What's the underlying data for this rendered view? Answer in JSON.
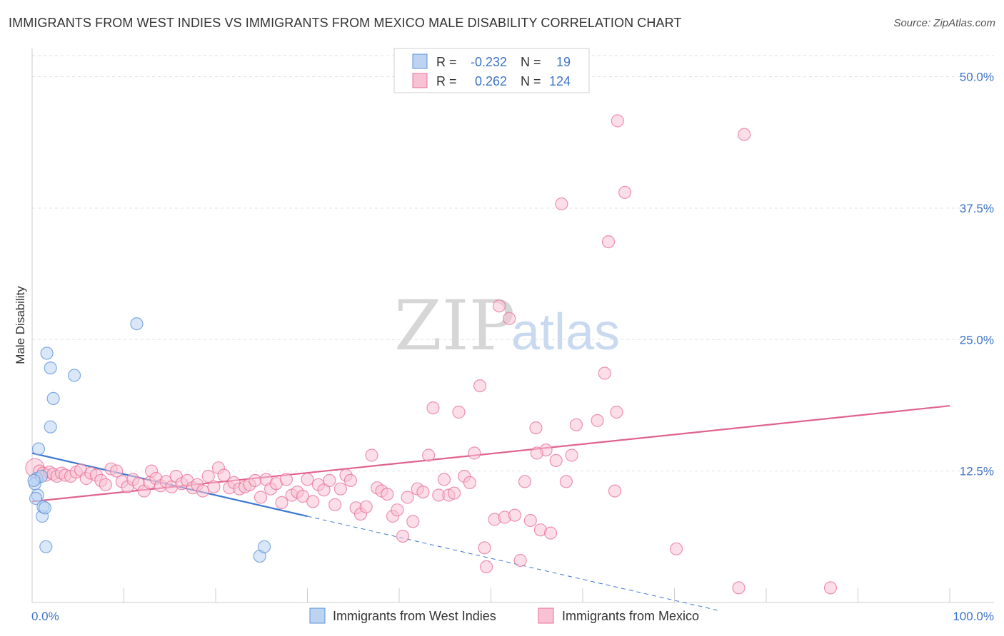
{
  "header": {
    "title": "IMMIGRANTS FROM WEST INDIES VS IMMIGRANTS FROM MEXICO MALE DISABILITY CORRELATION CHART",
    "source": "Source: ZipAtlas.com"
  },
  "watermark": {
    "zip": "ZIP",
    "atlas": "atlas"
  },
  "colors": {
    "west_indies": "#5b93d8",
    "west_indies_fill": "#bcd3f2",
    "mexico": "#e8709a",
    "mexico_fill": "#f7c2d4",
    "tick_label": "#3d74c6",
    "grid": "#dddddd"
  },
  "legend": {
    "rows": [
      {
        "r_label": "R =",
        "r_value": "-0.232",
        "n_label": "N =",
        "n_value": "19"
      },
      {
        "r_label": "R =",
        "r_value": "0.262",
        "n_label": "N =",
        "n_value": "124"
      }
    ]
  },
  "chart_data": {
    "type": "scatter",
    "title": "IMMIGRANTS FROM WEST INDIES VS IMMIGRANTS FROM MEXICO MALE DISABILITY CORRELATION CHART",
    "xlabel": "",
    "ylabel": "Male Disability",
    "xlim": [
      0,
      100
    ],
    "ylim": [
      0,
      52
    ],
    "x_tick_labels": [
      "0.0%",
      "100.0%"
    ],
    "y_ticks": [
      12.5,
      25.0,
      37.5,
      50.0
    ],
    "y_tick_labels": [
      "12.5%",
      "25.0%",
      "37.5%",
      "50.0%"
    ],
    "grid": true,
    "legend_position": "top-center",
    "series": [
      {
        "name": "Immigrants from West Indies",
        "r": -0.232,
        "n": 19,
        "points": [
          [
            0.5,
            11.8
          ],
          [
            0.3,
            11.3
          ],
          [
            0.6,
            10.2
          ],
          [
            0.4,
            9.9
          ],
          [
            0.7,
            14.6
          ],
          [
            1.0,
            12.0
          ],
          [
            1.1,
            8.2
          ],
          [
            1.2,
            9.1
          ],
          [
            1.4,
            9.0
          ],
          [
            1.5,
            5.3
          ],
          [
            1.6,
            23.7
          ],
          [
            2.0,
            22.3
          ],
          [
            2.0,
            16.7
          ],
          [
            2.3,
            19.4
          ],
          [
            4.6,
            21.6
          ],
          [
            11.4,
            26.5
          ],
          [
            24.8,
            4.4
          ],
          [
            25.3,
            5.3
          ],
          [
            0.2,
            11.6
          ]
        ],
        "trend": {
          "x": [
            0,
            30
          ],
          "y": [
            14.2,
            8.2
          ]
        },
        "trend_dashed": {
          "x": [
            30,
            75
          ],
          "y": [
            8.2,
            -0.8
          ]
        }
      },
      {
        "name": "Immigrants from Mexico",
        "r": 0.262,
        "n": 124,
        "points": [
          [
            0.3,
            12.8
          ],
          [
            0.8,
            12.5
          ],
          [
            1.2,
            12.3
          ],
          [
            1.5,
            12.1
          ],
          [
            1.9,
            12.4
          ],
          [
            2.3,
            12.2
          ],
          [
            2.7,
            12.0
          ],
          [
            3.2,
            12.3
          ],
          [
            3.6,
            12.1
          ],
          [
            4.2,
            12.0
          ],
          [
            4.8,
            12.4
          ],
          [
            5.3,
            12.6
          ],
          [
            5.9,
            11.8
          ],
          [
            6.4,
            12.3
          ],
          [
            7.0,
            12.1
          ],
          [
            7.5,
            11.6
          ],
          [
            8.0,
            11.2
          ],
          [
            8.6,
            12.7
          ],
          [
            9.2,
            12.5
          ],
          [
            9.8,
            11.5
          ],
          [
            10.4,
            11.0
          ],
          [
            11.0,
            11.7
          ],
          [
            11.6,
            11.3
          ],
          [
            12.2,
            10.6
          ],
          [
            12.8,
            11.4
          ],
          [
            13.0,
            12.5
          ],
          [
            13.5,
            11.8
          ],
          [
            14.0,
            11.1
          ],
          [
            14.6,
            11.5
          ],
          [
            15.2,
            11.0
          ],
          [
            15.7,
            12.0
          ],
          [
            16.3,
            11.3
          ],
          [
            16.9,
            11.6
          ],
          [
            17.5,
            10.9
          ],
          [
            18.0,
            11.2
          ],
          [
            18.6,
            10.6
          ],
          [
            19.2,
            12.0
          ],
          [
            19.8,
            11.0
          ],
          [
            20.3,
            12.8
          ],
          [
            20.9,
            12.1
          ],
          [
            21.5,
            10.9
          ],
          [
            22.0,
            11.4
          ],
          [
            22.6,
            10.8
          ],
          [
            23.2,
            11.0
          ],
          [
            23.7,
            11.2
          ],
          [
            24.3,
            11.6
          ],
          [
            24.9,
            10.0
          ],
          [
            25.5,
            11.7
          ],
          [
            26.0,
            10.8
          ],
          [
            26.6,
            11.3
          ],
          [
            27.2,
            9.5
          ],
          [
            27.7,
            11.7
          ],
          [
            28.3,
            10.2
          ],
          [
            28.9,
            10.5
          ],
          [
            29.5,
            10.1
          ],
          [
            30.0,
            11.7
          ],
          [
            30.6,
            9.6
          ],
          [
            31.2,
            11.2
          ],
          [
            31.8,
            10.7
          ],
          [
            32.4,
            11.6
          ],
          [
            33.0,
            9.3
          ],
          [
            33.6,
            10.8
          ],
          [
            34.2,
            12.1
          ],
          [
            34.7,
            11.6
          ],
          [
            35.3,
            9.0
          ],
          [
            35.8,
            8.4
          ],
          [
            36.4,
            9.1
          ],
          [
            37.0,
            14.0
          ],
          [
            37.6,
            10.9
          ],
          [
            38.1,
            10.6
          ],
          [
            38.7,
            10.3
          ],
          [
            39.3,
            8.2
          ],
          [
            39.8,
            8.8
          ],
          [
            40.4,
            6.3
          ],
          [
            40.9,
            10.0
          ],
          [
            41.5,
            7.7
          ],
          [
            42.0,
            10.8
          ],
          [
            42.6,
            10.5
          ],
          [
            43.2,
            14.0
          ],
          [
            43.7,
            18.5
          ],
          [
            44.3,
            10.2
          ],
          [
            44.9,
            11.7
          ],
          [
            45.4,
            10.2
          ],
          [
            46.0,
            10.4
          ],
          [
            46.5,
            18.1
          ],
          [
            47.1,
            12.0
          ],
          [
            47.7,
            11.4
          ],
          [
            48.2,
            14.2
          ],
          [
            48.8,
            20.6
          ],
          [
            49.3,
            5.2
          ],
          [
            49.5,
            3.4
          ],
          [
            50.4,
            7.9
          ],
          [
            50.9,
            28.2
          ],
          [
            51.5,
            8.1
          ],
          [
            52.0,
            27.0
          ],
          [
            52.6,
            8.3
          ],
          [
            53.2,
            4.0
          ],
          [
            53.7,
            11.5
          ],
          [
            54.3,
            7.8
          ],
          [
            54.9,
            16.6
          ],
          [
            55.4,
            6.9
          ],
          [
            56.0,
            14.5
          ],
          [
            56.5,
            6.6
          ],
          [
            57.1,
            13.5
          ],
          [
            57.7,
            37.9
          ],
          [
            58.2,
            11.5
          ],
          [
            58.8,
            14.0
          ],
          [
            59.3,
            16.9
          ],
          [
            61.6,
            17.3
          ],
          [
            62.4,
            21.8
          ],
          [
            62.8,
            34.3
          ],
          [
            63.5,
            10.6
          ],
          [
            63.7,
            18.1
          ],
          [
            63.8,
            45.8
          ],
          [
            64.6,
            39.0
          ],
          [
            70.2,
            5.1
          ],
          [
            77.0,
            1.4
          ],
          [
            77.6,
            44.5
          ],
          [
            87.0,
            1.4
          ],
          [
            55.0,
            14.2
          ]
        ],
        "trend": {
          "x": [
            0,
            100
          ],
          "y": [
            9.6,
            18.7
          ]
        }
      }
    ]
  },
  "bottom_legend": {
    "items": [
      {
        "label": "Immigrants from West Indies"
      },
      {
        "label": "Immigrants from Mexico"
      }
    ]
  }
}
